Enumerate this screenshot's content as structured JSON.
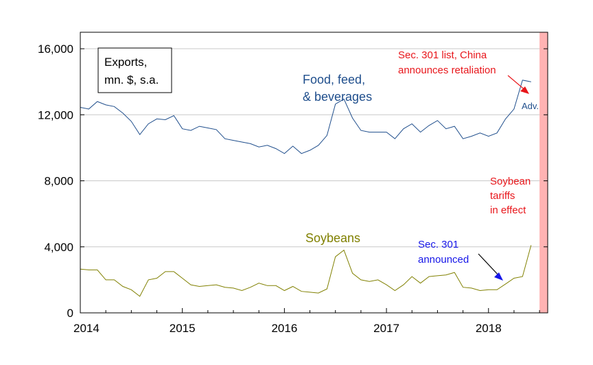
{
  "chart_data": {
    "type": "line",
    "xlim": [
      2014.0,
      2018.58
    ],
    "ylim": [
      0,
      17000
    ],
    "grid": true,
    "y_ticks": [
      0,
      4000,
      8000,
      12000,
      16000
    ],
    "y_tick_labels": [
      "0",
      "4,000",
      "8,000",
      "12,000",
      "16,000"
    ],
    "x_ticks": [
      2014,
      2015,
      2016,
      2017,
      2018
    ],
    "x_tick_labels": [
      "2014",
      "2015",
      "2016",
      "2017",
      "2018"
    ],
    "legend_box": {
      "line1": "Exports,",
      "line2": "mn. $, s.a."
    },
    "x": [
      2014.0,
      2014.083,
      2014.167,
      2014.25,
      2014.333,
      2014.417,
      2014.5,
      2014.583,
      2014.667,
      2014.75,
      2014.833,
      2014.917,
      2015.0,
      2015.083,
      2015.167,
      2015.25,
      2015.333,
      2015.417,
      2015.5,
      2015.583,
      2015.667,
      2015.75,
      2015.833,
      2015.917,
      2016.0,
      2016.083,
      2016.167,
      2016.25,
      2016.333,
      2016.417,
      2016.5,
      2016.583,
      2016.667,
      2016.75,
      2016.833,
      2016.917,
      2017.0,
      2017.083,
      2017.167,
      2017.25,
      2017.333,
      2017.417,
      2017.5,
      2017.583,
      2017.667,
      2017.75,
      2017.833,
      2017.917,
      2018.0,
      2018.083,
      2018.167,
      2018.25,
      2018.333,
      2018.417
    ],
    "series": [
      {
        "name": "Food, feed, & beverages",
        "color": "#1f4e8c",
        "values": [
          12450,
          12350,
          12800,
          12600,
          12500,
          12100,
          11600,
          10800,
          11450,
          11750,
          11700,
          11950,
          11150,
          11050,
          11300,
          11200,
          11100,
          10550,
          10450,
          10350,
          10250,
          10050,
          10150,
          9950,
          9650,
          10100,
          9650,
          9850,
          10150,
          10750,
          12650,
          12950,
          11800,
          11050,
          10950,
          10950,
          10950,
          10550,
          11150,
          11450,
          10950,
          11350,
          11650,
          11150,
          11300,
          10550,
          10700,
          10900,
          10700,
          10900,
          11750,
          12350,
          14100,
          14000
        ]
      },
      {
        "name": "Soybeans",
        "color": "#808000",
        "values": [
          2650,
          2600,
          2600,
          2000,
          2000,
          1600,
          1400,
          1000,
          2000,
          2100,
          2500,
          2500,
          2100,
          1700,
          1600,
          1650,
          1700,
          1550,
          1500,
          1350,
          1550,
          1800,
          1650,
          1650,
          1350,
          1600,
          1300,
          1250,
          1200,
          1450,
          3400,
          3800,
          2400,
          2000,
          1900,
          2000,
          1700,
          1350,
          1700,
          2200,
          1800,
          2200,
          2250,
          2300,
          2450,
          1550,
          1500,
          1350,
          1400,
          1400,
          1750,
          2100,
          2200,
          4100
        ]
      }
    ],
    "shaded_region": {
      "x_start": 2018.5,
      "x_end": 2018.58,
      "color": "#ffb3b3"
    },
    "annotations": {
      "food_label_1": "Food, feed,",
      "food_label_2": "& beverages",
      "soy_label": "Soybeans",
      "adv_label": "Adv.",
      "sec301_china_1": "Sec. 301 list, China",
      "sec301_china_2": "announces retaliation",
      "sec301_1": "Sec. 301",
      "sec301_2": "announced",
      "tariff_1": "Soybean",
      "tariff_2": "tariffs",
      "tariff_3": "in effect"
    }
  }
}
